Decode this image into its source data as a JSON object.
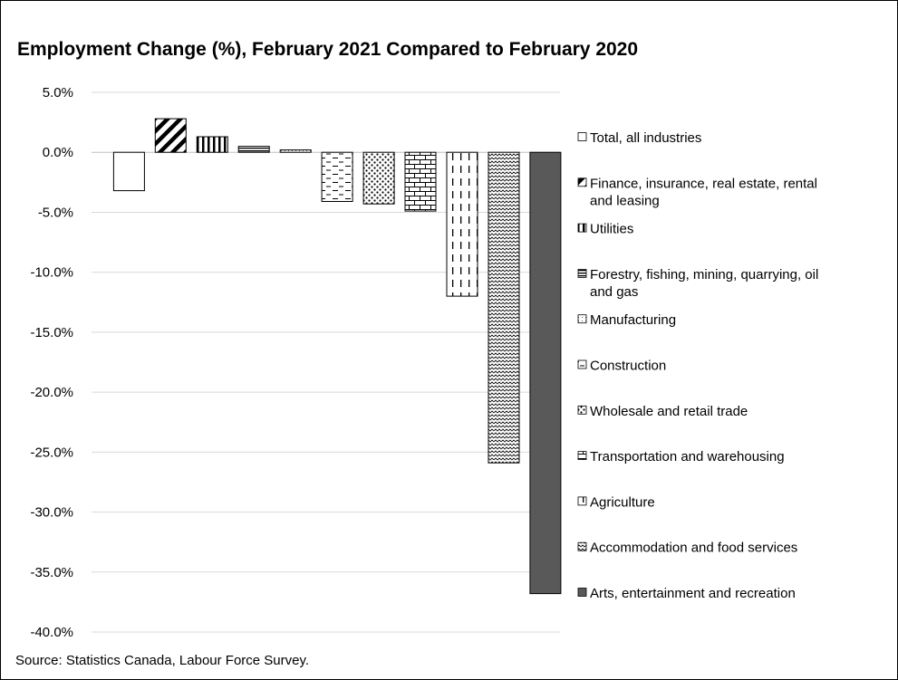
{
  "chart_data": {
    "type": "bar",
    "title": "Employment Change (%), February 2021 Compared to February 2020",
    "source": "Source: Statistics Canada, Labour Force Survey.",
    "xlabel": "",
    "ylabel": "",
    "ylim": [
      -40,
      5
    ],
    "yticks": [
      5,
      0,
      -5,
      -10,
      -15,
      -20,
      -25,
      -30,
      -35,
      -40
    ],
    "ytick_labels": [
      "5.0%",
      "0.0%",
      "-5.0%",
      "-10.0%",
      "-15.0%",
      "-20.0%",
      "-25.0%",
      "-30.0%",
      "-35.0%",
      "-40.0%"
    ],
    "grid": true,
    "legend_position": "right",
    "categories": [
      "Total, all industries",
      "Finance, insurance, real estate, rental and leasing",
      "Utilities",
      "Forestry, fishing, mining, quarrying, oil and gas",
      "Manufacturing",
      "Construction",
      "Wholesale and retail trade",
      "Transportation and warehousing",
      "Agriculture",
      "Accommodation and food services",
      "Arts, entertainment and recreation"
    ],
    "legend_lines": [
      [
        "Total, all industries"
      ],
      [
        "Finance, insurance, real estate, rental",
        "and leasing"
      ],
      [
        "Utilities"
      ],
      [
        "Forestry, fishing, mining, quarrying, oil",
        "and gas"
      ],
      [
        "Manufacturing"
      ],
      [
        "Construction"
      ],
      [
        "Wholesale and retail trade"
      ],
      [
        "Transportation and warehousing"
      ],
      [
        "Agriculture"
      ],
      [
        "Accommodation and food services"
      ],
      [
        "Arts, entertainment and recreation"
      ]
    ],
    "values": [
      -3.2,
      2.8,
      1.3,
      0.5,
      0.2,
      -4.1,
      -4.3,
      -4.9,
      -12.0,
      -25.9,
      -36.8
    ],
    "patterns": [
      "plain",
      "diagonal",
      "vertical",
      "horizontal",
      "dots-light",
      "dashes",
      "dots",
      "bricks",
      "dashed-vertical",
      "zigzag",
      "solid"
    ],
    "colors": {
      "stroke": "#000000",
      "solid_fill": "#595959",
      "grid": "#d9d9d9",
      "axis": "#bfbfbf"
    }
  }
}
